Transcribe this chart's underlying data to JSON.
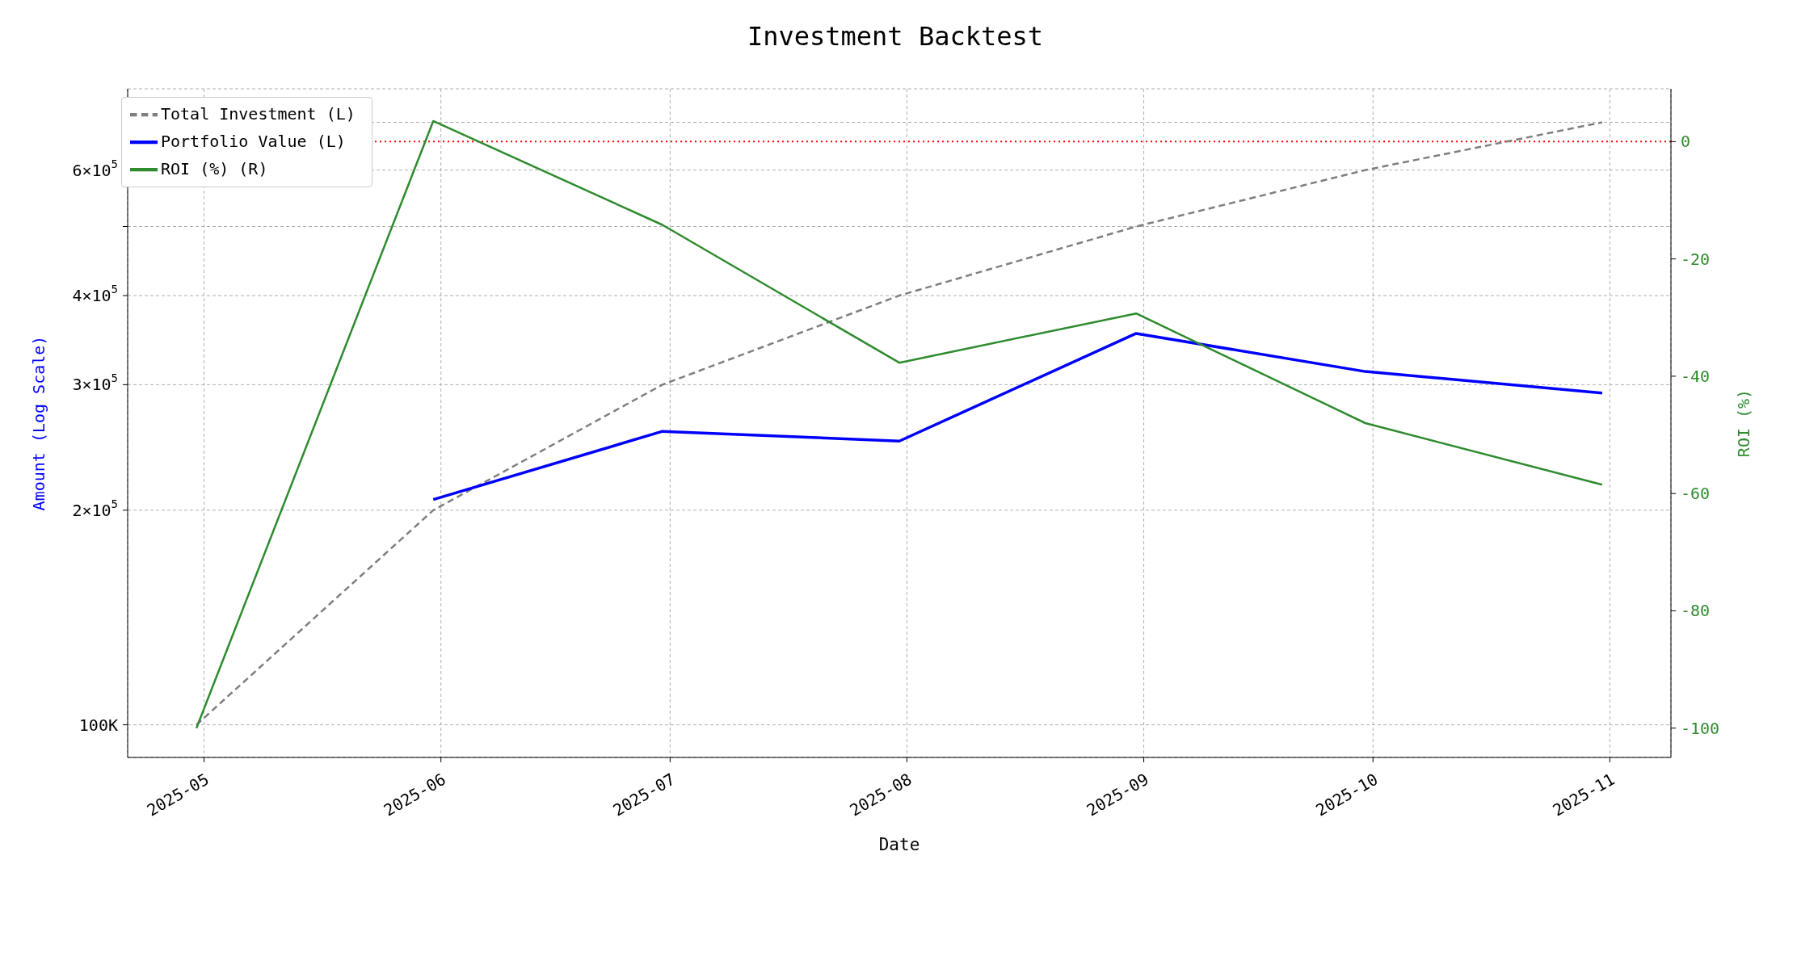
{
  "chart_data": {
    "type": "line",
    "title": "Investment Backtest",
    "xlabel": "Date",
    "ylabel": "Amount (Log Scale)",
    "y2label": "ROI (%)",
    "x": [
      "2025-04-30",
      "2025-05-31",
      "2025-06-30",
      "2025-07-31",
      "2025-08-31",
      "2025-09-30",
      "2025-10-31"
    ],
    "series": [
      {
        "name": "Total Investment (L)",
        "color": "#7f7f7f",
        "line_style": "dashed",
        "values": [
          100000,
          200000,
          300000,
          400000,
          500000,
          600000,
          700000
        ]
      },
      {
        "name": "Portfolio Value (L)",
        "color": "#0000ff",
        "line_style": "solid",
        "values": [
          null,
          207000,
          258000,
          250000,
          354000,
          313000,
          292000
        ]
      },
      {
        "name": "ROI (%) (R)",
        "color": "#2e8b2e",
        "line_style": "solid",
        "axis": "y2",
        "values": [
          -100,
          3.5,
          -14.2,
          -37.7,
          -29.3,
          -48,
          -58.5
        ]
      }
    ],
    "xlim": [
      "2025-04-21",
      "2025-11-09"
    ],
    "xticks": [
      {
        "value": "2025-05-01",
        "label": "2025-05"
      },
      {
        "value": "2025-06-01",
        "label": "2025-06"
      },
      {
        "value": "2025-07-01",
        "label": "2025-07"
      },
      {
        "value": "2025-08-01",
        "label": "2025-08"
      },
      {
        "value": "2025-09-01",
        "label": "2025-09"
      },
      {
        "value": "2025-10-01",
        "label": "2025-10"
      },
      {
        "value": "2025-11-01",
        "label": "2025-11"
      }
    ],
    "log": "y",
    "ylim": [
      90000,
      780000
    ],
    "yticks": [
      {
        "value": 100000,
        "label": "100K"
      },
      {
        "value": 200000,
        "label": "2×10$^{5}$"
      },
      {
        "value": 300000,
        "label": "3×10$^{5}$"
      },
      {
        "value": 400000,
        "label": "4×10$^{5}$"
      },
      {
        "value": 500000,
        "label": null
      },
      {
        "value": 600000,
        "label": "6×10$^{5}$"
      },
      {
        "value": 700000,
        "label": null
      }
    ],
    "y2lim": [
      -105,
      9
    ],
    "y2ticks": [
      -100,
      -80,
      -60,
      -40,
      -20,
      0
    ],
    "ref_lines": [
      {
        "axis": "y2",
        "value": 0,
        "color": "#ff0000",
        "line_style": "dotted"
      }
    ],
    "grid": true,
    "legend": "top left",
    "marker": "none"
  }
}
